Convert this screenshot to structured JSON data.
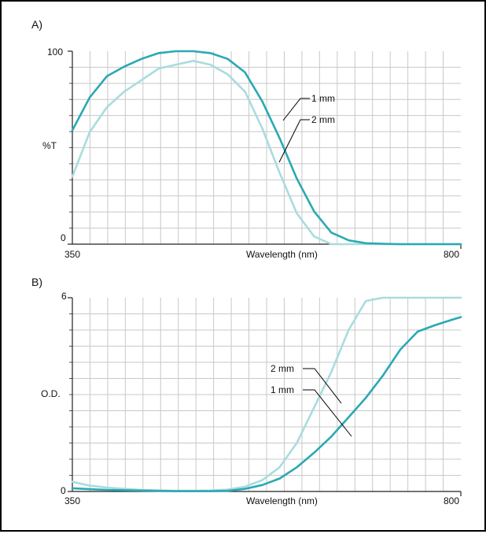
{
  "colors": {
    "dark_teal": "#2aa9b3",
    "light_teal": "#a9dcde",
    "grid": "#c8c8c8",
    "frame": "#000000"
  },
  "chart_data": [
    {
      "panel": "A)",
      "type": "line",
      "ylabel": "%T",
      "xlabel": "Wavelength (nm)",
      "xlim": [
        350,
        800
      ],
      "ylim": [
        0,
        100
      ],
      "x_tick_labels": [
        "350",
        "800"
      ],
      "y_tick_labels": [
        "100",
        "0"
      ],
      "grid": true,
      "x": [
        350,
        370,
        390,
        410,
        430,
        450,
        470,
        490,
        510,
        530,
        550,
        570,
        590,
        610,
        630,
        650,
        670,
        690,
        710,
        730,
        750,
        770,
        790,
        800
      ],
      "series": [
        {
          "name": "1 mm",
          "color": "#2aa9b3",
          "values": [
            59,
            76,
            87,
            92,
            96,
            99,
            100,
            101,
            99,
            96,
            89,
            74,
            55,
            34,
            17,
            6,
            2,
            0.5,
            0.2,
            0,
            0,
            0,
            0,
            0
          ]
        },
        {
          "name": "2 mm",
          "color": "#a9dcde",
          "values": [
            35,
            58,
            71,
            79,
            85,
            91,
            93,
            95,
            93,
            88,
            79,
            60,
            37,
            16,
            4,
            0,
            0,
            0,
            0,
            0,
            0,
            0,
            0,
            0
          ]
        }
      ],
      "annotations": [
        "1 mm",
        "2 mm"
      ]
    },
    {
      "panel": "B)",
      "type": "line",
      "ylabel": "O.D.",
      "xlabel": "Wavelength (nm)",
      "xlim": [
        350,
        800
      ],
      "ylim": [
        0,
        6
      ],
      "x_tick_labels": [
        "350",
        "800"
      ],
      "y_tick_labels": [
        "6",
        "0"
      ],
      "grid": true,
      "x": [
        350,
        370,
        390,
        410,
        430,
        450,
        470,
        490,
        510,
        530,
        550,
        570,
        590,
        610,
        630,
        650,
        670,
        690,
        710,
        730,
        750,
        770,
        790,
        800
      ],
      "series": [
        {
          "name": "2 mm",
          "color": "#a9dcde",
          "values": [
            0.3,
            0.18,
            0.12,
            0.08,
            0.05,
            0.03,
            0.02,
            0.02,
            0.03,
            0.06,
            0.15,
            0.35,
            0.75,
            1.5,
            2.6,
            3.7,
            5.0,
            5.9,
            6.0,
            6.0,
            6.0,
            6.0,
            6.0,
            6.0
          ]
        },
        {
          "name": "1 mm",
          "color": "#2aa9b3",
          "values": [
            0.1,
            0.07,
            0.05,
            0.04,
            0.03,
            0.02,
            0.01,
            0.01,
            0.01,
            0.02,
            0.08,
            0.2,
            0.4,
            0.75,
            1.2,
            1.7,
            2.3,
            2.9,
            3.6,
            4.4,
            4.95,
            5.15,
            5.32,
            5.4
          ]
        }
      ],
      "annotations": [
        "2 mm",
        "1 mm"
      ]
    }
  ]
}
